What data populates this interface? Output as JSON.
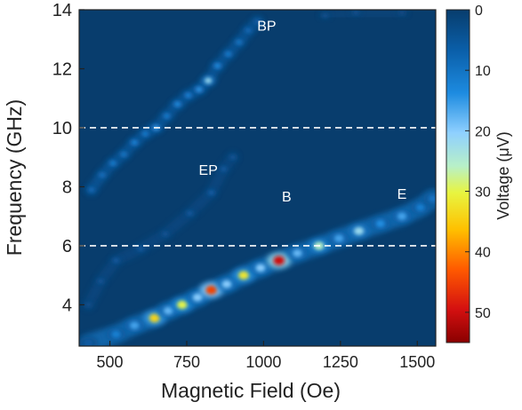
{
  "chart_data": {
    "type": "heatmap",
    "xlabel": "Magnetic Field (Oe)",
    "ylabel": "Frequency (GHz)",
    "colorbar_label": "Voltage (μV)",
    "xlim": [
      400,
      1560
    ],
    "ylim": [
      2.6,
      14
    ],
    "zlim": [
      0,
      55
    ],
    "x_ticks": [
      500,
      750,
      1000,
      1250,
      1500
    ],
    "y_ticks": [
      4,
      6,
      8,
      10,
      12,
      14
    ],
    "z_ticks": [
      0,
      10,
      20,
      30,
      40,
      50
    ],
    "background_color": "#083d6d",
    "dashed_lines_y": [
      6,
      10
    ],
    "annotations": [
      {
        "text": "BP",
        "x": 1010,
        "y": 13.3
      },
      {
        "text": "EP",
        "x": 820,
        "y": 8.4
      },
      {
        "text": "B",
        "x": 1075,
        "y": 7.5
      },
      {
        "text": "E",
        "x": 1450,
        "y": 7.6
      }
    ],
    "branches": [
      {
        "name": "E",
        "points": [
          {
            "x": 430,
            "y": 2.7,
            "v": 6
          },
          {
            "x": 520,
            "y": 3.0,
            "v": 12
          },
          {
            "x": 580,
            "y": 3.3,
            "v": 16
          },
          {
            "x": 645,
            "y": 3.55,
            "v": 34
          },
          {
            "x": 690,
            "y": 3.8,
            "v": 18
          },
          {
            "x": 735,
            "y": 4.0,
            "v": 30
          },
          {
            "x": 785,
            "y": 4.25,
            "v": 20
          },
          {
            "x": 830,
            "y": 4.5,
            "v": 45
          },
          {
            "x": 880,
            "y": 4.7,
            "v": 20
          },
          {
            "x": 935,
            "y": 5.0,
            "v": 32
          },
          {
            "x": 990,
            "y": 5.25,
            "v": 20
          },
          {
            "x": 1050,
            "y": 5.5,
            "v": 50
          },
          {
            "x": 1110,
            "y": 5.75,
            "v": 18
          },
          {
            "x": 1180,
            "y": 6.0,
            "v": 26
          },
          {
            "x": 1245,
            "y": 6.25,
            "v": 16
          },
          {
            "x": 1310,
            "y": 6.5,
            "v": 22
          },
          {
            "x": 1380,
            "y": 6.75,
            "v": 14
          },
          {
            "x": 1450,
            "y": 7.0,
            "v": 16
          },
          {
            "x": 1510,
            "y": 7.3,
            "v": 12
          },
          {
            "x": 1550,
            "y": 7.6,
            "v": 10
          }
        ]
      },
      {
        "name": "EP",
        "points": [
          {
            "x": 430,
            "y": 4.0,
            "v": 4
          },
          {
            "x": 470,
            "y": 4.8,
            "v": 5
          },
          {
            "x": 520,
            "y": 5.5,
            "v": 6
          },
          {
            "x": 600,
            "y": 5.9,
            "v": 6
          },
          {
            "x": 680,
            "y": 6.4,
            "v": 5
          },
          {
            "x": 760,
            "y": 7.1,
            "v": 6
          },
          {
            "x": 830,
            "y": 7.8,
            "v": 7
          },
          {
            "x": 870,
            "y": 8.6,
            "v": 6
          },
          {
            "x": 900,
            "y": 9.0,
            "v": 5
          }
        ]
      },
      {
        "name": "BP",
        "points": [
          {
            "x": 440,
            "y": 7.9,
            "v": 9
          },
          {
            "x": 475,
            "y": 8.4,
            "v": 10
          },
          {
            "x": 510,
            "y": 8.8,
            "v": 12
          },
          {
            "x": 545,
            "y": 9.1,
            "v": 11
          },
          {
            "x": 580,
            "y": 9.5,
            "v": 13
          },
          {
            "x": 615,
            "y": 9.8,
            "v": 12
          },
          {
            "x": 650,
            "y": 10.0,
            "v": 15
          },
          {
            "x": 685,
            "y": 10.4,
            "v": 12
          },
          {
            "x": 720,
            "y": 10.8,
            "v": 14
          },
          {
            "x": 755,
            "y": 11.1,
            "v": 13
          },
          {
            "x": 790,
            "y": 11.3,
            "v": 15
          },
          {
            "x": 820,
            "y": 11.6,
            "v": 22
          },
          {
            "x": 850,
            "y": 12.1,
            "v": 14
          },
          {
            "x": 885,
            "y": 12.5,
            "v": 12
          },
          {
            "x": 920,
            "y": 12.9,
            "v": 11
          },
          {
            "x": 950,
            "y": 13.3,
            "v": 9
          },
          {
            "x": 980,
            "y": 13.6,
            "v": 7
          }
        ]
      },
      {
        "name": "B",
        "points": [
          {
            "x": 1200,
            "y": 13.8,
            "v": 4
          },
          {
            "x": 1300,
            "y": 13.9,
            "v": 4
          },
          {
            "x": 1450,
            "y": 13.9,
            "v": 3
          }
        ]
      }
    ]
  }
}
